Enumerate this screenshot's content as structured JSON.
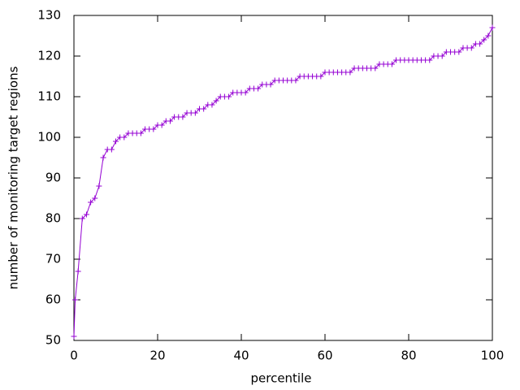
{
  "chart_data": {
    "type": "line",
    "xlabel": "percentile",
    "ylabel": "number of monitoring target regions",
    "x": [
      0,
      0.3,
      1,
      2,
      3,
      4,
      5,
      6,
      7,
      8,
      9,
      10,
      11,
      12,
      13,
      14,
      15,
      16,
      17,
      18,
      19,
      20,
      21,
      22,
      23,
      24,
      25,
      26,
      27,
      28,
      29,
      30,
      31,
      32,
      33,
      34,
      35,
      36,
      37,
      38,
      39,
      40,
      41,
      42,
      43,
      44,
      45,
      46,
      47,
      48,
      49,
      50,
      51,
      52,
      53,
      54,
      55,
      56,
      57,
      58,
      59,
      60,
      61,
      62,
      63,
      64,
      65,
      66,
      67,
      68,
      69,
      70,
      71,
      72,
      73,
      74,
      75,
      76,
      77,
      78,
      79,
      80,
      81,
      82,
      83,
      84,
      85,
      86,
      87,
      88,
      89,
      90,
      91,
      92,
      93,
      94,
      95,
      96,
      97,
      98,
      99,
      100
    ],
    "values": [
      51,
      60,
      67,
      80,
      81,
      84,
      85,
      88,
      95,
      97,
      97,
      99,
      100,
      100,
      101,
      101,
      101,
      101,
      102,
      102,
      102,
      103,
      103,
      104,
      104,
      105,
      105,
      105,
      106,
      106,
      106,
      107,
      107,
      108,
      108,
      109,
      110,
      110,
      110,
      111,
      111,
      111,
      111,
      112,
      112,
      112,
      113,
      113,
      113,
      114,
      114,
      114,
      114,
      114,
      114,
      115,
      115,
      115,
      115,
      115,
      115,
      116,
      116,
      116,
      116,
      116,
      116,
      116,
      117,
      117,
      117,
      117,
      117,
      117,
      118,
      118,
      118,
      118,
      119,
      119,
      119,
      119,
      119,
      119,
      119,
      119,
      119,
      120,
      120,
      120,
      121,
      121,
      121,
      121,
      122,
      122,
      122,
      123,
      123,
      124,
      125,
      127
    ],
    "color": "#9400d3",
    "xlim": [
      0,
      100
    ],
    "xticks": [
      0,
      20,
      40,
      60,
      80,
      100
    ],
    "ylim": [
      50,
      130
    ],
    "yticks": [
      50,
      60,
      70,
      80,
      90,
      100,
      110,
      120,
      130
    ]
  }
}
